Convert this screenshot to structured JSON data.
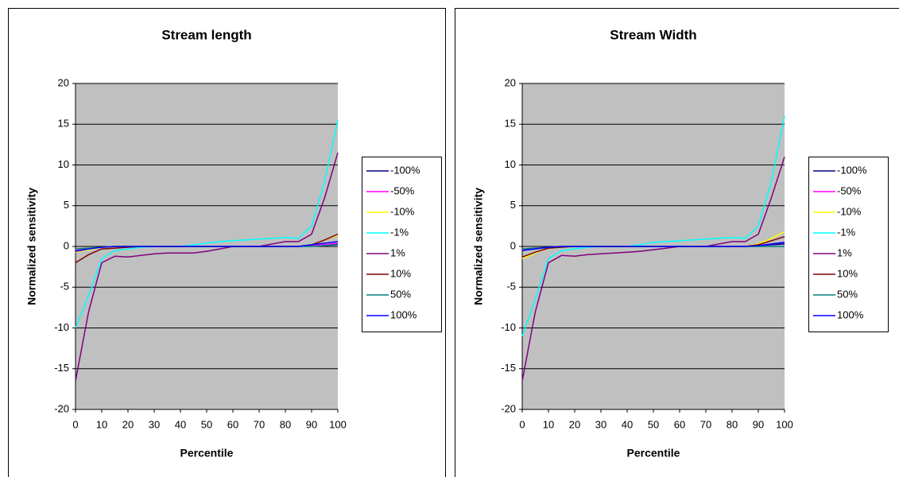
{
  "chart_data": [
    {
      "type": "line",
      "title": "Stream length",
      "x_label": "Percentile",
      "y_label": "Normalized sensitivity",
      "x": [
        0,
        5,
        10,
        15,
        20,
        25,
        30,
        35,
        40,
        45,
        50,
        55,
        60,
        65,
        70,
        75,
        80,
        85,
        90,
        95,
        100
      ],
      "xlim": [
        0,
        100
      ],
      "xticks": [
        0,
        10,
        20,
        30,
        40,
        50,
        60,
        70,
        80,
        90,
        100
      ],
      "ylim": [
        -20,
        20
      ],
      "yticks": [
        -20,
        -15,
        -10,
        -5,
        0,
        5,
        10,
        15,
        20
      ],
      "grid": true,
      "series": [
        {
          "name": "-100%",
          "color": "#000080",
          "values": [
            -0.5,
            -0.3,
            -0.1,
            0,
            0,
            0,
            0,
            0,
            0,
            0,
            0,
            0,
            0,
            0,
            0,
            0,
            0,
            0,
            0.1,
            0.2,
            0.3
          ]
        },
        {
          "name": "-50%",
          "color": "#FF00FF",
          "values": [
            -0.5,
            -0.3,
            -0.1,
            0,
            0,
            0,
            0,
            0,
            0,
            0,
            0,
            0,
            0,
            0,
            0,
            0,
            0,
            0,
            0.1,
            0.2,
            0.4
          ]
        },
        {
          "name": "-10%",
          "color": "#FFFF00",
          "values": [
            -0.7,
            -0.4,
            -0.1,
            0,
            0,
            0,
            0,
            0,
            0,
            0,
            0,
            0,
            0,
            0,
            0,
            0,
            0,
            0,
            0.2,
            0.8,
            1.4
          ]
        },
        {
          "name": "-1%",
          "color": "#00FFFF",
          "values": [
            -10,
            -6,
            -1.5,
            -0.5,
            -0.3,
            -0.1,
            0,
            0,
            0,
            0.2,
            0.4,
            0.6,
            0.7,
            0.8,
            0.9,
            1,
            1.1,
            1,
            2.5,
            8,
            15.5
          ]
        },
        {
          "name": "1%",
          "color": "#800080",
          "values": [
            -16.5,
            -8,
            -2,
            -1.2,
            -1.3,
            -1.1,
            -0.9,
            -0.8,
            -0.8,
            -0.8,
            -0.6,
            -0.3,
            0,
            0,
            0,
            0.3,
            0.6,
            0.6,
            1.5,
            6,
            11.5
          ]
        },
        {
          "name": "10%",
          "color": "#800000",
          "values": [
            -2,
            -1,
            -0.3,
            -0.2,
            -0.1,
            0,
            0,
            0,
            0,
            0,
            0,
            0,
            0,
            0,
            0,
            0,
            0,
            0,
            0.2,
            0.8,
            1.5
          ]
        },
        {
          "name": "50%",
          "color": "#008080",
          "values": [
            -0.3,
            -0.2,
            -0.1,
            0,
            0,
            0,
            0,
            0,
            0,
            0,
            0,
            0,
            0,
            0,
            0,
            0,
            0,
            0,
            0,
            0.1,
            0.2
          ]
        },
        {
          "name": "100%",
          "color": "#0000FF",
          "values": [
            -0.6,
            -0.3,
            -0.1,
            0,
            0,
            0,
            0,
            0,
            0,
            0,
            0,
            0,
            0,
            0,
            0,
            0,
            0,
            0,
            0.2,
            0.4,
            0.6
          ]
        }
      ]
    },
    {
      "type": "line",
      "title": "Stream Width",
      "x_label": "Percentile",
      "y_label": "Normalized sensitivity",
      "x": [
        0,
        5,
        10,
        15,
        20,
        25,
        30,
        35,
        40,
        45,
        50,
        55,
        60,
        65,
        70,
        75,
        80,
        85,
        90,
        95,
        100
      ],
      "xlim": [
        0,
        100
      ],
      "xticks": [
        0,
        10,
        20,
        30,
        40,
        50,
        60,
        70,
        80,
        90,
        100
      ],
      "ylim": [
        -20,
        20
      ],
      "yticks": [
        -20,
        -15,
        -10,
        -5,
        0,
        5,
        10,
        15,
        20
      ],
      "grid": true,
      "series": [
        {
          "name": "-100%",
          "color": "#000080",
          "values": [
            -0.4,
            -0.2,
            -0.1,
            0,
            0,
            0,
            0,
            0,
            0,
            0,
            0,
            0,
            0,
            0,
            0,
            0,
            0,
            0,
            0.1,
            0.2,
            0.3
          ]
        },
        {
          "name": "-50%",
          "color": "#FF00FF",
          "values": [
            -0.4,
            -0.2,
            -0.1,
            0,
            0,
            0,
            0,
            0,
            0,
            0,
            0,
            0,
            0,
            0,
            0,
            0,
            0,
            0,
            0.1,
            0.3,
            0.5
          ]
        },
        {
          "name": "-10%",
          "color": "#FFFF00",
          "values": [
            -1.5,
            -0.8,
            -0.2,
            -0.1,
            0,
            0,
            0,
            0,
            0,
            0,
            0,
            0,
            0,
            0,
            0,
            0,
            0,
            0,
            0.3,
            1,
            1.8
          ]
        },
        {
          "name": "-1%",
          "color": "#00FFFF",
          "values": [
            -11,
            -6.5,
            -1.5,
            -0.5,
            -0.3,
            -0.1,
            0,
            0,
            0,
            0.2,
            0.5,
            0.6,
            0.7,
            0.8,
            0.9,
            1,
            1.1,
            1,
            2.5,
            8,
            16
          ]
        },
        {
          "name": "1%",
          "color": "#800080",
          "values": [
            -16.5,
            -8,
            -2,
            -1.1,
            -1.2,
            -1,
            -0.9,
            -0.8,
            -0.7,
            -0.6,
            -0.4,
            -0.2,
            0,
            0,
            0,
            0.3,
            0.6,
            0.6,
            1.5,
            6,
            11
          ]
        },
        {
          "name": "10%",
          "color": "#800000",
          "values": [
            -1.3,
            -0.7,
            -0.2,
            -0.1,
            0,
            0,
            0,
            0,
            0,
            0,
            0,
            0,
            0,
            0,
            0,
            0,
            0,
            0,
            0.2,
            0.7,
            1.2
          ]
        },
        {
          "name": "50%",
          "color": "#008080",
          "values": [
            -0.3,
            -0.2,
            -0.1,
            0,
            0,
            0,
            0,
            0,
            0,
            0,
            0,
            0,
            0,
            0,
            0,
            0,
            0,
            0,
            0,
            0,
            0
          ]
        },
        {
          "name": "100%",
          "color": "#0000FF",
          "values": [
            -0.5,
            -0.3,
            -0.1,
            0,
            0,
            0,
            0,
            0,
            0,
            0,
            0,
            0,
            0,
            0,
            0,
            0,
            0,
            0,
            0.1,
            0.3,
            0.5
          ]
        }
      ]
    }
  ]
}
